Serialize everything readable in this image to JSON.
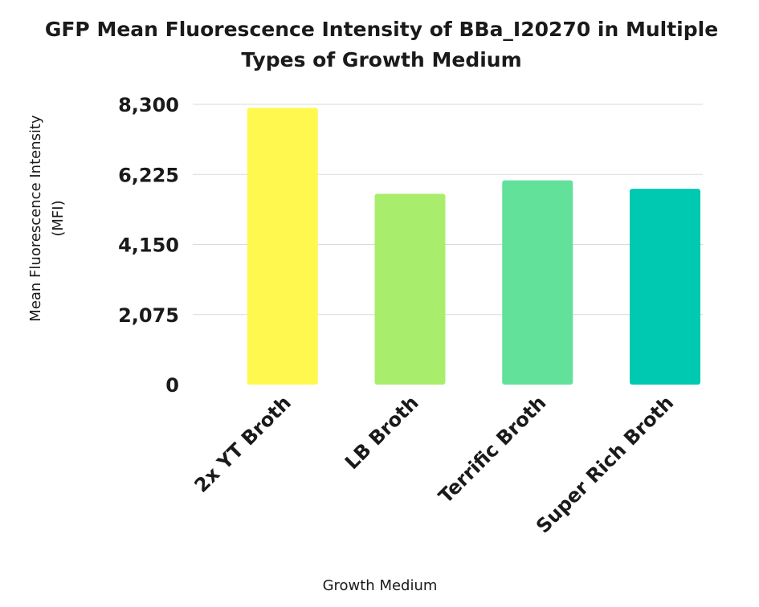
{
  "chart_data": {
    "type": "bar",
    "title_lines": [
      "GFP Mean Fluorescence Intensity of BBa_I20270 in Multiple",
      "Types of Growth Medium"
    ],
    "ylabel_lines": [
      "Mean Fluorescence Intensity",
      "(MFI)"
    ],
    "xlabel": "Growth Medium",
    "categories": [
      "2x YT Broth",
      "LB Broth",
      "Terrific Broth",
      "Super Rich Broth"
    ],
    "values": [
      8200,
      5650,
      6050,
      5800
    ],
    "colors": [
      "#fff94f",
      "#a8ee6c",
      "#62e19a",
      "#00c9b2"
    ],
    "ylim": [
      0,
      8300
    ],
    "yticks": [
      0,
      2075,
      4150,
      6225,
      8300
    ],
    "ytick_labels": [
      "0",
      "2,075",
      "4,150",
      "6,225",
      "8,300"
    ],
    "grid": true
  }
}
